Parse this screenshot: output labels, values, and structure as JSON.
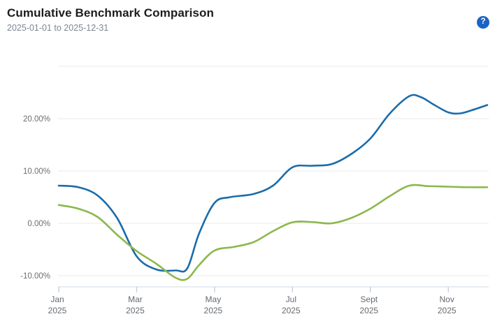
{
  "header": {
    "title": "Cumulative Benchmark Comparison",
    "date_range": "2025-01-01 to 2025-12-31",
    "help_glyph": "?"
  },
  "colors": {
    "blue_line": "#1a6caa",
    "green_line": "#8cb84c",
    "help_icon_bg": "#1c63c4",
    "grid_line": "#e8e8e8",
    "axis_line": "#dfe6ef",
    "tick_mark": "#c5d0e0",
    "y_label": "#6e6e6e",
    "x_label": "#666b70"
  },
  "chart_data": {
    "type": "line",
    "title": "Cumulative Benchmark Comparison",
    "subtitle": "2025-01-01 to 2025-12-31",
    "grid": true,
    "legend": "none",
    "x_axis": {
      "unit": "months of 2025",
      "range_months": [
        0,
        11
      ],
      "ticks": [
        {
          "t": 0,
          "line1": "Jan",
          "line2": "2025"
        },
        {
          "t": 2,
          "line1": "Mar",
          "line2": "2025"
        },
        {
          "t": 4,
          "line1": "May",
          "line2": "2025"
        },
        {
          "t": 6,
          "line1": "Jul",
          "line2": "2025"
        },
        {
          "t": 8,
          "line1": "Sept",
          "line2": "2025"
        },
        {
          "t": 10,
          "line1": "Nov",
          "line2": "2025"
        }
      ]
    },
    "y_axis": {
      "unit": "percent",
      "range": [
        -12.1,
        30
      ],
      "ticks": [
        {
          "v": 30,
          "label": ""
        },
        {
          "v": 20,
          "label": "20.00%"
        },
        {
          "v": 10,
          "label": "10.00%"
        },
        {
          "v": 0,
          "label": "0.00%"
        },
        {
          "v": -10,
          "label": "-10.00%"
        }
      ]
    },
    "series": [
      {
        "name": "series-blue",
        "color": "#1a6caa",
        "points": [
          [
            0,
            7.2
          ],
          [
            0.5,
            6.9
          ],
          [
            1,
            5.3
          ],
          [
            1.5,
            1.0
          ],
          [
            2,
            -6.3
          ],
          [
            2.5,
            -8.8
          ],
          [
            3,
            -9.0
          ],
          [
            3.3,
            -8.6
          ],
          [
            3.6,
            -2.0
          ],
          [
            4,
            3.9
          ],
          [
            4.4,
            5.0
          ],
          [
            5,
            5.6
          ],
          [
            5.5,
            7.2
          ],
          [
            6,
            10.7
          ],
          [
            6.5,
            11.0
          ],
          [
            7,
            11.3
          ],
          [
            7.5,
            13.2
          ],
          [
            8,
            16.2
          ],
          [
            8.5,
            21.0
          ],
          [
            9,
            24.3
          ],
          [
            9.3,
            24.1
          ],
          [
            9.6,
            22.8
          ],
          [
            10,
            21.2
          ],
          [
            10.3,
            21.0
          ],
          [
            10.6,
            21.6
          ],
          [
            11,
            22.6
          ]
        ]
      },
      {
        "name": "series-green",
        "color": "#8cb84c",
        "points": [
          [
            0,
            3.5
          ],
          [
            0.5,
            2.8
          ],
          [
            1,
            1.2
          ],
          [
            1.5,
            -2.2
          ],
          [
            2,
            -5.3
          ],
          [
            2.5,
            -7.7
          ],
          [
            3,
            -10.4
          ],
          [
            3.3,
            -10.6
          ],
          [
            3.6,
            -8.0
          ],
          [
            4,
            -5.2
          ],
          [
            4.5,
            -4.5
          ],
          [
            5,
            -3.6
          ],
          [
            5.5,
            -1.5
          ],
          [
            6,
            0.2
          ],
          [
            6.5,
            0.25
          ],
          [
            7,
            0.0
          ],
          [
            7.5,
            1.0
          ],
          [
            8,
            2.8
          ],
          [
            8.5,
            5.2
          ],
          [
            9,
            7.2
          ],
          [
            9.5,
            7.1
          ],
          [
            10,
            7.0
          ],
          [
            10.5,
            6.9
          ],
          [
            11,
            6.9
          ]
        ]
      }
    ]
  }
}
